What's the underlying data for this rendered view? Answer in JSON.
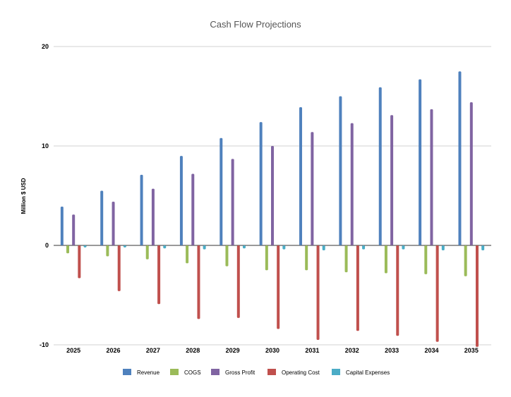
{
  "chart_data": {
    "type": "bar",
    "title": "Cash Flow Projections",
    "xlabel": "",
    "ylabel": "Million $ USD",
    "ylim": [
      -10,
      20
    ],
    "yticks": [
      -10,
      0,
      10,
      20
    ],
    "grid": true,
    "legend_position": "bottom",
    "categories": [
      "2025",
      "2026",
      "2027",
      "2028",
      "2029",
      "2030",
      "2031",
      "2032",
      "2033",
      "2034",
      "2035"
    ],
    "series": [
      {
        "name": "Revenue",
        "color": "#4f81bd",
        "values": [
          3.9,
          5.5,
          7.1,
          9.0,
          10.8,
          12.4,
          13.9,
          15.0,
          15.9,
          16.7,
          17.5
        ]
      },
      {
        "name": "COGS",
        "color": "#9bbb59",
        "values": [
          -0.8,
          -1.1,
          -1.4,
          -1.8,
          -2.1,
          -2.5,
          -2.5,
          -2.7,
          -2.8,
          -2.9,
          -3.1
        ]
      },
      {
        "name": "Gross Profit",
        "color": "#8064a2",
        "values": [
          3.1,
          4.4,
          5.7,
          7.2,
          8.7,
          10.0,
          11.4,
          12.3,
          13.1,
          13.7,
          14.4
        ]
      },
      {
        "name": "Operating Cost",
        "color": "#c0504d",
        "values": [
          -3.3,
          -4.6,
          -5.9,
          -7.4,
          -7.3,
          -8.4,
          -9.5,
          -8.6,
          -9.1,
          -9.7,
          -10.2
        ]
      },
      {
        "name": "Capital Expenses",
        "color": "#4bacc6",
        "values": [
          -0.2,
          -0.2,
          -0.3,
          -0.4,
          -0.3,
          -0.4,
          -0.5,
          -0.4,
          -0.4,
          -0.5,
          -0.5
        ]
      }
    ]
  }
}
